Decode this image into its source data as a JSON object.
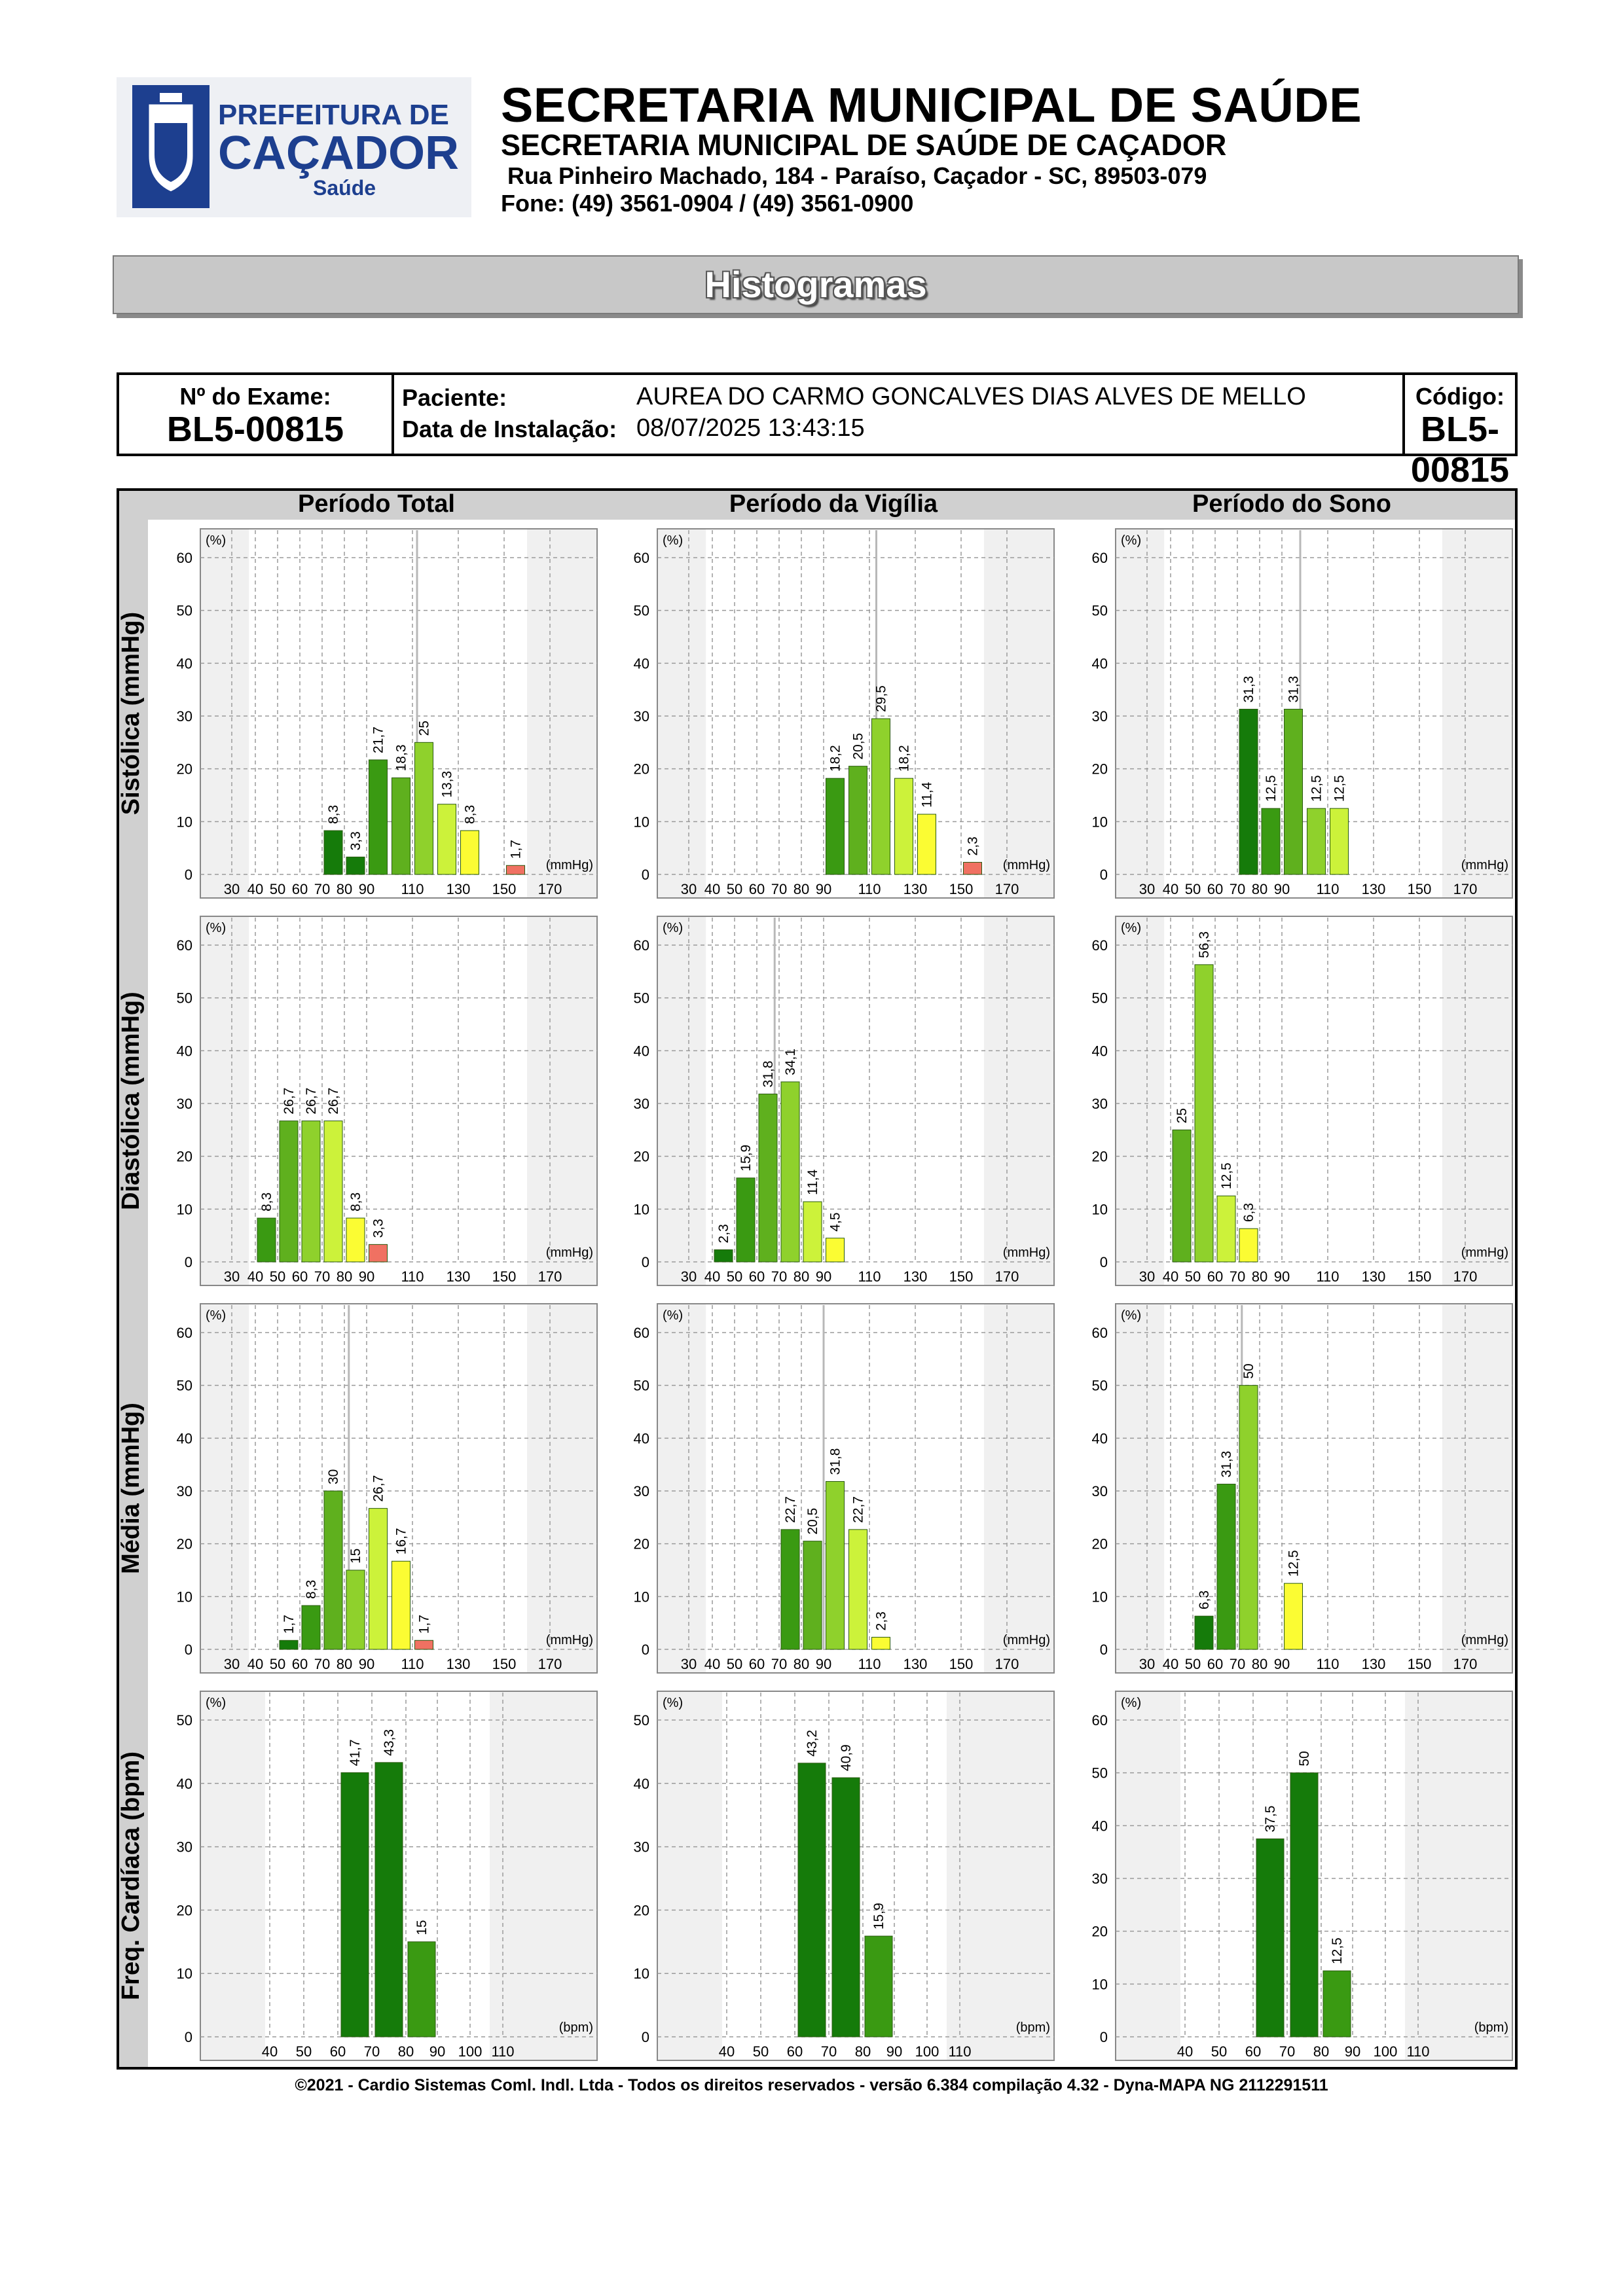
{
  "header": {
    "logo_text": [
      "PREFEITURA DE",
      "CAÇADOR",
      "Saúde"
    ],
    "title": "SECRETARIA MUNICIPAL DE SAÚDE",
    "subtitle": "SECRETARIA MUNICIPAL DE SAÚDE DE CAÇADOR",
    "address": "Rua Pinheiro Machado, 184 - Paraíso, Caçador - SC, 89503-079",
    "phone": "Fone: (49) 3561-0904  / (49) 3561-0900"
  },
  "banner": {
    "title": "Histogramas"
  },
  "exam_info": {
    "exam_label": "Nº do Exame:",
    "exam_value": "BL5-00815",
    "patient_label": "Paciente:",
    "patient_value": "AUREA DO CARMO GONCALVES DIAS  ALVES DE MELLO",
    "install_label": "Data de Instalação:",
    "install_value": "08/07/2025 13:43:15",
    "code_label": "Código:",
    "code_value": "BL5-00815"
  },
  "grid": {
    "columns": [
      "Período Total",
      "Período da Vigília",
      "Período do Sono"
    ],
    "rows": [
      "Sistólica (mmHg)",
      "Diastólica (mmHg)",
      "Média (mmHg)",
      "Freq. Cardíaca (bpm)"
    ]
  },
  "colors": {
    "dark_green": "#157b0a",
    "green": "#3a9a12",
    "mid_green": "#5fb01e",
    "light_green": "#8fd12c",
    "yellow_green": "#ccf23a",
    "yellow": "#fbfc33",
    "red": "#f07162",
    "grid_line": "#9a9a9a",
    "header_gray": "#d0d0d0"
  },
  "chart_data": [
    {
      "type": "bar",
      "row": "Sistólica (mmHg)",
      "column": "Período Total",
      "unit": "(mmHg)",
      "y_unit": "(%)",
      "ylim": [
        0,
        60
      ],
      "x_ticks": [
        "30",
        "40",
        "50",
        "60",
        "70",
        "80",
        "90",
        "110",
        "130",
        "150",
        "170"
      ],
      "bars": [
        {
          "x": 70,
          "value": 8.3,
          "label": "8,3",
          "color": "#157b0a"
        },
        {
          "x": 80,
          "value": 3.3,
          "label": "3,3",
          "color": "#157b0a"
        },
        {
          "x": 90,
          "value": 21.7,
          "label": "21,7",
          "color": "#3a9a12"
        },
        {
          "x": 100,
          "value": 18.3,
          "label": "18,3",
          "color": "#5fb01e"
        },
        {
          "x": 110,
          "value": 25,
          "label": "25",
          "color": "#8fd12c"
        },
        {
          "x": 120,
          "value": 13.3,
          "label": "13,3",
          "color": "#ccf23a"
        },
        {
          "x": 130,
          "value": 8.3,
          "label": "8,3",
          "color": "#fbfc33"
        },
        {
          "x": 150,
          "value": 1.7,
          "label": "1,7",
          "color": "#f07162"
        }
      ],
      "marker": 112
    },
    {
      "type": "bar",
      "row": "Sistólica (mmHg)",
      "column": "Período da Vigília",
      "unit": "(mmHg)",
      "y_unit": "(%)",
      "ylim": [
        0,
        60
      ],
      "x_ticks": [
        "30",
        "40",
        "50",
        "60",
        "70",
        "80",
        "90",
        "110",
        "130",
        "150",
        "170"
      ],
      "bars": [
        {
          "x": 90,
          "value": 18.2,
          "label": "18,2",
          "color": "#3a9a12"
        },
        {
          "x": 100,
          "value": 20.5,
          "label": "20,5",
          "color": "#5fb01e"
        },
        {
          "x": 110,
          "value": 29.5,
          "label": "29,5",
          "color": "#8fd12c"
        },
        {
          "x": 120,
          "value": 18.2,
          "label": "18,2",
          "color": "#ccf23a"
        },
        {
          "x": 130,
          "value": 11.4,
          "label": "11,4",
          "color": "#fbfc33"
        },
        {
          "x": 150,
          "value": 2.3,
          "label": "2,3",
          "color": "#f07162"
        }
      ],
      "marker": 113
    },
    {
      "type": "bar",
      "row": "Sistólica (mmHg)",
      "column": "Período do Sono",
      "unit": "(mmHg)",
      "y_unit": "(%)",
      "ylim": [
        0,
        60
      ],
      "x_ticks": [
        "30",
        "40",
        "50",
        "60",
        "70",
        "80",
        "90",
        "110",
        "130",
        "150",
        "170"
      ],
      "bars": [
        {
          "x": 70,
          "value": 31.3,
          "label": "31,3",
          "color": "#157b0a"
        },
        {
          "x": 80,
          "value": 12.5,
          "label": "12,5",
          "color": "#3a9a12"
        },
        {
          "x": 90,
          "value": 31.3,
          "label": "31,3",
          "color": "#5fb01e"
        },
        {
          "x": 100,
          "value": 12.5,
          "label": "12,5",
          "color": "#8fd12c"
        },
        {
          "x": 110,
          "value": 12.5,
          "label": "12,5",
          "color": "#ccf23a"
        }
      ],
      "marker": 98
    },
    {
      "type": "bar",
      "row": "Diastólica (mmHg)",
      "column": "Período Total",
      "unit": "(mmHg)",
      "y_unit": "(%)",
      "ylim": [
        0,
        60
      ],
      "x_ticks": [
        "30",
        "40",
        "50",
        "60",
        "70",
        "80",
        "90",
        "110",
        "130",
        "150",
        "170"
      ],
      "bars": [
        {
          "x": 40,
          "value": 8.3,
          "label": "8,3",
          "color": "#3a9a12"
        },
        {
          "x": 50,
          "value": 26.7,
          "label": "26,7",
          "color": "#5fb01e"
        },
        {
          "x": 60,
          "value": 26.7,
          "label": "26,7",
          "color": "#8fd12c"
        },
        {
          "x": 70,
          "value": 26.7,
          "label": "26,7",
          "color": "#ccf23a"
        },
        {
          "x": 80,
          "value": 8.3,
          "label": "8,3",
          "color": "#fbfc33"
        },
        {
          "x": 90,
          "value": 3.3,
          "label": "3,3",
          "color": "#f07162"
        }
      ],
      "marker": null
    },
    {
      "type": "bar",
      "row": "Diastólica (mmHg)",
      "column": "Período da Vigília",
      "unit": "(mmHg)",
      "y_unit": "(%)",
      "ylim": [
        0,
        60
      ],
      "x_ticks": [
        "30",
        "40",
        "50",
        "60",
        "70",
        "80",
        "90",
        "110",
        "130",
        "150",
        "170"
      ],
      "bars": [
        {
          "x": 40,
          "value": 2.3,
          "label": "2,3",
          "color": "#157b0a"
        },
        {
          "x": 50,
          "value": 15.9,
          "label": "15,9",
          "color": "#3a9a12"
        },
        {
          "x": 60,
          "value": 31.8,
          "label": "31,8",
          "color": "#5fb01e"
        },
        {
          "x": 70,
          "value": 34.1,
          "label": "34,1",
          "color": "#8fd12c"
        },
        {
          "x": 80,
          "value": 11.4,
          "label": "11,4",
          "color": "#ccf23a"
        },
        {
          "x": 90,
          "value": 4.5,
          "label": "4,5",
          "color": "#fbfc33"
        }
      ],
      "marker": 68
    },
    {
      "type": "bar",
      "row": "Diastólica (mmHg)",
      "column": "Período do Sono",
      "unit": "(mmHg)",
      "y_unit": "(%)",
      "ylim": [
        0,
        60
      ],
      "x_ticks": [
        "30",
        "40",
        "50",
        "60",
        "70",
        "80",
        "90",
        "110",
        "130",
        "150",
        "170"
      ],
      "bars": [
        {
          "x": 40,
          "value": 25,
          "label": "25",
          "color": "#5fb01e"
        },
        {
          "x": 50,
          "value": 56.3,
          "label": "56,3",
          "color": "#8fd12c"
        },
        {
          "x": 60,
          "value": 12.5,
          "label": "12,5",
          "color": "#ccf23a"
        },
        {
          "x": 70,
          "value": 6.3,
          "label": "6,3",
          "color": "#fbfc33"
        }
      ],
      "marker": null
    },
    {
      "type": "bar",
      "row": "Média (mmHg)",
      "column": "Período Total",
      "unit": "(mmHg)",
      "y_unit": "(%)",
      "ylim": [
        0,
        60
      ],
      "x_ticks": [
        "30",
        "40",
        "50",
        "60",
        "70",
        "80",
        "90",
        "110",
        "130",
        "150",
        "170"
      ],
      "bars": [
        {
          "x": 50,
          "value": 1.7,
          "label": "1,7",
          "color": "#157b0a"
        },
        {
          "x": 60,
          "value": 8.3,
          "label": "8,3",
          "color": "#3a9a12"
        },
        {
          "x": 70,
          "value": 30,
          "label": "30",
          "color": "#5fb01e"
        },
        {
          "x": 80,
          "value": 15,
          "label": "15",
          "color": "#8fd12c"
        },
        {
          "x": 90,
          "value": 26.7,
          "label": "26,7",
          "color": "#ccf23a"
        },
        {
          "x": 100,
          "value": 16.7,
          "label": "16,7",
          "color": "#fbfc33"
        },
        {
          "x": 110,
          "value": 1.7,
          "label": "1,7",
          "color": "#f07162"
        }
      ],
      "marker": 82
    },
    {
      "type": "bar",
      "row": "Média (mmHg)",
      "column": "Período da Vigília",
      "unit": "(mmHg)",
      "y_unit": "(%)",
      "ylim": [
        0,
        60
      ],
      "x_ticks": [
        "30",
        "40",
        "50",
        "60",
        "70",
        "80",
        "90",
        "110",
        "130",
        "150",
        "170"
      ],
      "bars": [
        {
          "x": 70,
          "value": 22.7,
          "label": "22,7",
          "color": "#3a9a12"
        },
        {
          "x": 80,
          "value": 20.5,
          "label": "20,5",
          "color": "#5fb01e"
        },
        {
          "x": 90,
          "value": 31.8,
          "label": "31,8",
          "color": "#8fd12c"
        },
        {
          "x": 100,
          "value": 22.7,
          "label": "22,7",
          "color": "#ccf23a"
        },
        {
          "x": 110,
          "value": 2.3,
          "label": "2,3",
          "color": "#fbfc33"
        }
      ],
      "marker": 90
    },
    {
      "type": "bar",
      "row": "Média (mmHg)",
      "column": "Período do Sono",
      "unit": "(mmHg)",
      "y_unit": "(%)",
      "ylim": [
        0,
        60
      ],
      "x_ticks": [
        "30",
        "40",
        "50",
        "60",
        "70",
        "80",
        "90",
        "110",
        "130",
        "150",
        "170"
      ],
      "bars": [
        {
          "x": 50,
          "value": 6.3,
          "label": "6,3",
          "color": "#157b0a"
        },
        {
          "x": 60,
          "value": 31.3,
          "label": "31,3",
          "color": "#3a9a12"
        },
        {
          "x": 70,
          "value": 50,
          "label": "50",
          "color": "#8fd12c"
        },
        {
          "x": 90,
          "value": 12.5,
          "label": "12,5",
          "color": "#fbfc33"
        }
      ],
      "marker": 72
    },
    {
      "type": "bar",
      "row": "Freq. Cardíaca (bpm)",
      "column": "Período Total",
      "unit": "(bpm)",
      "y_unit": "(%)",
      "ylim": [
        0,
        50
      ],
      "x_ticks": [
        "40",
        "50",
        "60",
        "70",
        "80",
        "90",
        "100",
        "110"
      ],
      "bars": [
        {
          "x": 60,
          "value": 41.7,
          "label": "41,7",
          "color": "#157b0a"
        },
        {
          "x": 70,
          "value": 43.3,
          "label": "43,3",
          "color": "#157b0a"
        },
        {
          "x": 80,
          "value": 15,
          "label": "15",
          "color": "#3a9a12"
        }
      ],
      "marker": null
    },
    {
      "type": "bar",
      "row": "Freq. Cardíaca (bpm)",
      "column": "Período da Vigília",
      "unit": "(bpm)",
      "y_unit": "(%)",
      "ylim": [
        0,
        50
      ],
      "x_ticks": [
        "40",
        "50",
        "60",
        "70",
        "80",
        "90",
        "100",
        "110"
      ],
      "bars": [
        {
          "x": 60,
          "value": 43.2,
          "label": "43,2",
          "color": "#157b0a"
        },
        {
          "x": 70,
          "value": 40.9,
          "label": "40,9",
          "color": "#157b0a"
        },
        {
          "x": 80,
          "value": 15.9,
          "label": "15,9",
          "color": "#3a9a12"
        }
      ],
      "marker": null
    },
    {
      "type": "bar",
      "row": "Freq. Cardíaca (bpm)",
      "column": "Período do Sono",
      "unit": "(bpm)",
      "y_unit": "(%)",
      "ylim": [
        0,
        60
      ],
      "x_ticks": [
        "40",
        "50",
        "60",
        "70",
        "80",
        "90",
        "100",
        "110"
      ],
      "bars": [
        {
          "x": 60,
          "value": 37.5,
          "label": "37,5",
          "color": "#157b0a"
        },
        {
          "x": 70,
          "value": 50,
          "label": "50",
          "color": "#157b0a"
        },
        {
          "x": 80,
          "value": 12.5,
          "label": "12,5",
          "color": "#3a9a12"
        }
      ],
      "marker": null
    }
  ],
  "footer": "©2021 - Cardio Sistemas Coml. Indl. Ltda - Todos os direitos reservados - versão 6.384 compilação 4.32 - Dyna-MAPA NG 2112291511"
}
